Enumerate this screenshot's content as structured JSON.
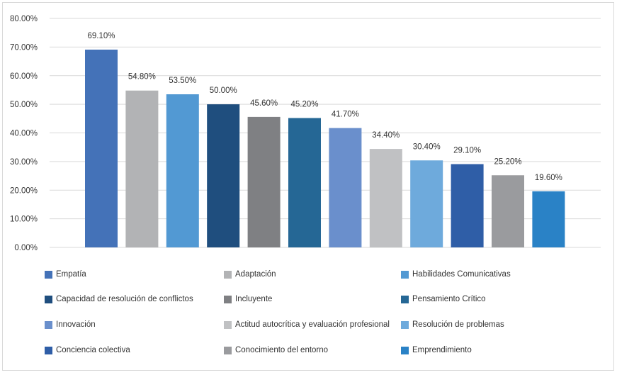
{
  "chart_data": {
    "type": "bar",
    "categories": [
      "Empatía",
      "Adaptación",
      "Habilidades Comunicativas",
      "Capacidad de resolución de conflictos",
      "Incluyente",
      "Pensamiento Crítico",
      "Innovación",
      "Actitud autocrítica y evaluación profesional",
      "Resolución de problemas",
      "Conciencia colectiva",
      "Conocimiento del entorno",
      "Emprendimiento"
    ],
    "values": [
      69.1,
      54.8,
      53.5,
      50.0,
      45.6,
      45.2,
      41.7,
      34.4,
      30.4,
      29.1,
      25.2,
      19.6
    ],
    "data_labels": [
      "69.10%",
      "54.80%",
      "53.50%",
      "50.00%",
      "45.60%",
      "45.20%",
      "41.70%",
      "34.40%",
      "30.40%",
      "29.10%",
      "25.20%",
      "19.60%"
    ],
    "colors": [
      "#4472b8",
      "#b2b3b5",
      "#5299d3",
      "#1f4e7e",
      "#7f8083",
      "#256795",
      "#6a8fcc",
      "#c0c1c3",
      "#6eaadc",
      "#2f5ea7",
      "#9a9b9e",
      "#2a82c6"
    ],
    "yticks": [
      "0.00%",
      "10.00%",
      "20.00%",
      "30.00%",
      "40.00%",
      "50.00%",
      "60.00%",
      "70.00%",
      "80.00%"
    ],
    "ylim": [
      0,
      80
    ],
    "grid": true,
    "legend_position": "bottom",
    "title": "",
    "xlabel": "",
    "ylabel": ""
  }
}
